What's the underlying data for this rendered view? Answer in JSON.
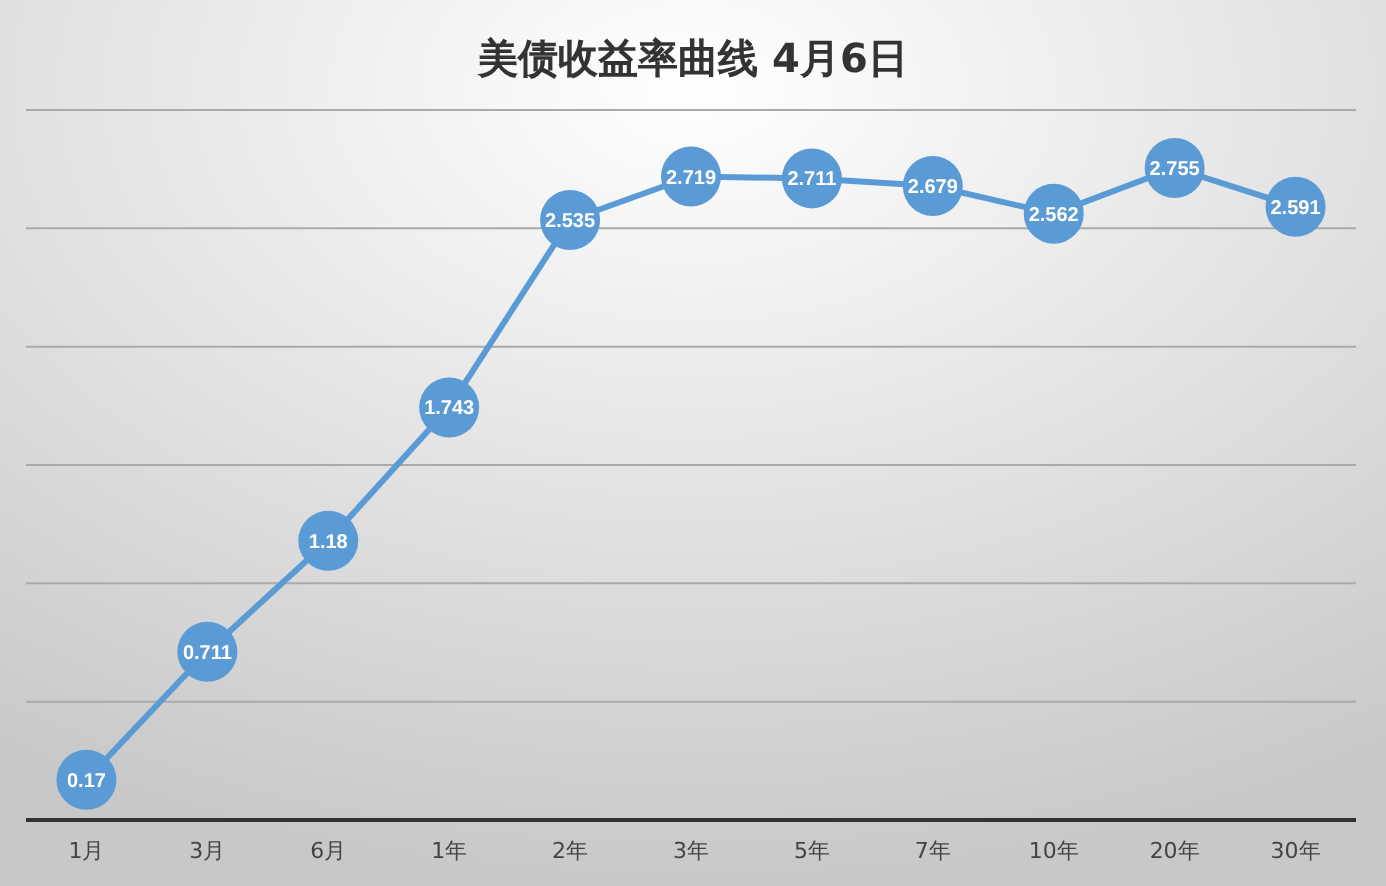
{
  "chart_data": {
    "type": "line",
    "title": "美债收益率曲线 4月6日",
    "categories": [
      "1月",
      "3月",
      "6月",
      "1年",
      "2年",
      "3年",
      "5年",
      "7年",
      "10年",
      "20年",
      "30年"
    ],
    "values": [
      0.17,
      0.711,
      1.18,
      1.743,
      2.535,
      2.719,
      2.711,
      2.679,
      2.562,
      2.755,
      2.591
    ],
    "color": "#5b9bd5",
    "ylim": [
      0,
      3
    ],
    "yticks": [
      {
        "value": 0,
        "label": null
      },
      {
        "value": 0.5,
        "label": null
      },
      {
        "value": 1,
        "label": null
      },
      {
        "value": 1.5,
        "label": null
      },
      {
        "value": 2,
        "label": null
      },
      {
        "value": 2.5,
        "label": null
      },
      {
        "value": 3,
        "label": null
      }
    ],
    "tick_labels": "x",
    "grid": "y",
    "marker": "circle",
    "data_labels": true
  }
}
